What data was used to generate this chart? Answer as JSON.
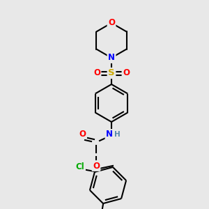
{
  "background_color": "#e8e8e8",
  "bond_color": "#000000",
  "atom_colors": {
    "O": "#ff0000",
    "N": "#0000ff",
    "S": "#ccaa00",
    "Cl": "#00aa00",
    "C": "#000000",
    "H": "#5588aa"
  },
  "figsize": [
    3.0,
    3.0
  ],
  "dpi": 100,
  "lw": 1.5,
  "fs": 8.5
}
